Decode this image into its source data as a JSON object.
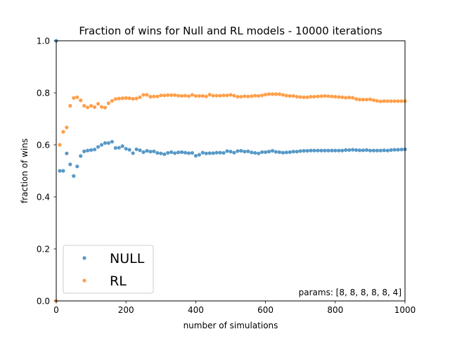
{
  "chart_data": {
    "type": "scatter",
    "title": "Fraction of wins for Null and RL models - 10000 iterations",
    "xlabel": "number of simulations",
    "ylabel": "fraction of wins",
    "xlim": [
      0,
      1000
    ],
    "ylim": [
      0,
      1.0
    ],
    "xticks": [
      "0",
      "200",
      "400",
      "600",
      "800",
      "1000"
    ],
    "xtick_values": [
      0,
      200,
      400,
      600,
      800,
      1000
    ],
    "yticks": [
      "0.0",
      "0.2",
      "0.4",
      "0.6",
      "0.8",
      "1.0"
    ],
    "ytick_values": [
      0,
      0.2,
      0.4,
      0.6,
      0.8,
      1.0
    ],
    "grid": false,
    "legend_position": "lower-left",
    "annotation": "params: [8, 8, 8, 8, 8, 4]",
    "x": [
      0,
      10,
      20,
      30,
      40,
      50,
      60,
      70,
      80,
      90,
      100,
      110,
      120,
      130,
      140,
      150,
      160,
      170,
      180,
      190,
      200,
      210,
      220,
      230,
      240,
      250,
      260,
      270,
      280,
      290,
      300,
      310,
      320,
      330,
      340,
      350,
      360,
      370,
      380,
      390,
      400,
      410,
      420,
      430,
      440,
      450,
      460,
      470,
      480,
      490,
      500,
      510,
      520,
      530,
      540,
      550,
      560,
      570,
      580,
      590,
      600,
      610,
      620,
      630,
      640,
      650,
      660,
      670,
      680,
      690,
      700,
      710,
      720,
      730,
      740,
      750,
      760,
      770,
      780,
      790,
      800,
      810,
      820,
      830,
      840,
      850,
      860,
      870,
      880,
      890,
      900,
      910,
      920,
      930,
      940,
      950,
      960,
      970,
      980,
      990,
      1000
    ],
    "series": [
      {
        "name": "NULL",
        "color": "#1f77b4",
        "values": [
          1.0,
          0.5,
          0.5,
          0.567,
          0.525,
          0.48,
          0.517,
          0.557,
          0.575,
          0.578,
          0.58,
          0.582,
          0.592,
          0.6,
          0.607,
          0.607,
          0.612,
          0.588,
          0.589,
          0.595,
          0.585,
          0.581,
          0.568,
          0.583,
          0.579,
          0.572,
          0.577,
          0.574,
          0.575,
          0.569,
          0.567,
          0.564,
          0.569,
          0.572,
          0.568,
          0.571,
          0.572,
          0.57,
          0.568,
          0.569,
          0.558,
          0.562,
          0.57,
          0.567,
          0.568,
          0.568,
          0.57,
          0.57,
          0.569,
          0.576,
          0.574,
          0.57,
          0.576,
          0.577,
          0.574,
          0.575,
          0.571,
          0.569,
          0.567,
          0.572,
          0.572,
          0.574,
          0.577,
          0.573,
          0.572,
          0.57,
          0.571,
          0.572,
          0.574,
          0.574,
          0.576,
          0.577,
          0.577,
          0.578,
          0.578,
          0.578,
          0.578,
          0.578,
          0.578,
          0.578,
          0.578,
          0.578,
          0.578,
          0.58,
          0.58,
          0.581,
          0.58,
          0.579,
          0.579,
          0.58,
          0.578,
          0.578,
          0.578,
          0.578,
          0.579,
          0.578,
          0.58,
          0.581,
          0.581,
          0.582,
          0.583
        ]
      },
      {
        "name": "RL",
        "color": "#ff7f0e",
        "values": [
          0.0,
          0.6,
          0.65,
          0.667,
          0.75,
          0.78,
          0.783,
          0.771,
          0.75,
          0.744,
          0.75,
          0.745,
          0.758,
          0.746,
          0.743,
          0.76,
          0.769,
          0.776,
          0.778,
          0.779,
          0.78,
          0.779,
          0.777,
          0.778,
          0.783,
          0.792,
          0.792,
          0.785,
          0.786,
          0.786,
          0.79,
          0.79,
          0.791,
          0.791,
          0.791,
          0.789,
          0.788,
          0.789,
          0.787,
          0.792,
          0.788,
          0.788,
          0.788,
          0.786,
          0.793,
          0.789,
          0.789,
          0.789,
          0.79,
          0.79,
          0.792,
          0.789,
          0.785,
          0.785,
          0.787,
          0.786,
          0.787,
          0.789,
          0.788,
          0.79,
          0.793,
          0.795,
          0.795,
          0.795,
          0.795,
          0.792,
          0.789,
          0.788,
          0.788,
          0.785,
          0.784,
          0.783,
          0.783,
          0.785,
          0.785,
          0.786,
          0.787,
          0.788,
          0.787,
          0.786,
          0.785,
          0.784,
          0.783,
          0.781,
          0.782,
          0.781,
          0.776,
          0.774,
          0.774,
          0.774,
          0.775,
          0.772,
          0.769,
          0.767,
          0.768,
          0.768,
          0.768,
          0.768,
          0.768,
          0.768,
          0.768
        ]
      }
    ]
  }
}
